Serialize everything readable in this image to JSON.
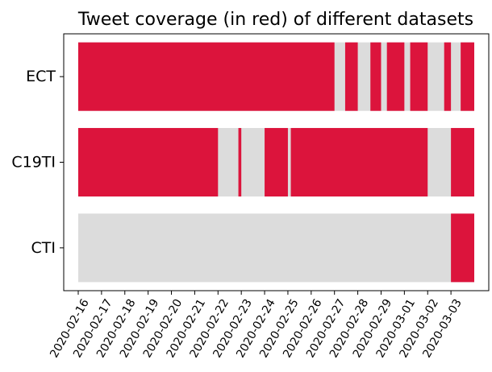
{
  "chart_data": {
    "type": "bar",
    "title": "Tweet coverage (in red) of different datasets",
    "xlabel": "",
    "ylabel": "",
    "x_tick_labels": [
      "2020-02-16",
      "2020-02-17",
      "2020-02-18",
      "2020-02-19",
      "2020-02-20",
      "2020-02-21",
      "2020-02-22",
      "2020-02-23",
      "2020-02-24",
      "2020-02-25",
      "2020-02-26",
      "2020-02-27",
      "2020-02-28",
      "2020-02-29",
      "2020-03-01",
      "2020-03-02",
      "2020-03-03"
    ],
    "xlim": [
      "2020-02-16",
      "2020-03-04"
    ],
    "legend": "none",
    "grid": false,
    "colors": {
      "covered": "#dc143c",
      "not_covered": "#dcdcdc"
    },
    "datasets": [
      {
        "name": "ECT",
        "covered_intervals": [
          [
            "2020-02-16T00:00",
            "2020-02-27T00:00"
          ],
          [
            "2020-02-27T11:00",
            "2020-02-28T00:00"
          ],
          [
            "2020-02-28T13:00",
            "2020-02-29T00:00"
          ],
          [
            "2020-02-29T06:00",
            "2020-03-01T00:00"
          ],
          [
            "2020-03-01T06:00",
            "2020-03-02T00:00"
          ],
          [
            "2020-03-02T17:00",
            "2020-03-03T00:00"
          ],
          [
            "2020-03-03T10:00",
            "2020-03-04T00:00"
          ]
        ]
      },
      {
        "name": "C19TI",
        "covered_intervals": [
          [
            "2020-02-16T00:00",
            "2020-02-22T00:00"
          ],
          [
            "2020-02-22T21:00",
            "2020-02-23T00:00"
          ],
          [
            "2020-02-24T00:00",
            "2020-02-25T00:00"
          ],
          [
            "2020-02-25T03:00",
            "2020-03-02T00:00"
          ],
          [
            "2020-03-03T00:00",
            "2020-03-04T00:00"
          ]
        ]
      },
      {
        "name": "CTI",
        "covered_intervals": [
          [
            "2020-03-03T00:00",
            "2020-03-04T00:00"
          ]
        ]
      }
    ]
  }
}
